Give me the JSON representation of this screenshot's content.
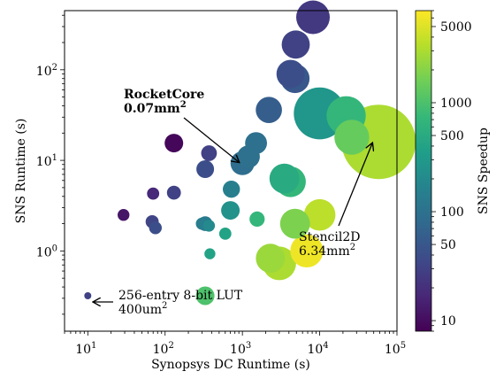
{
  "chart_data": {
    "type": "scatter",
    "title": "",
    "xlabel": "Synopsys DC Runtime (s)",
    "ylabel": "SNS Runtime (s)",
    "xscale": "log",
    "yscale": "log",
    "xlim": [
      5,
      100000
    ],
    "ylim": [
      0.13,
      450
    ],
    "x_tick_labels": [
      {
        "value": 10,
        "base": "10",
        "exp": "1"
      },
      {
        "value": 100,
        "base": "10",
        "exp": "2"
      },
      {
        "value": 1000,
        "base": "10",
        "exp": "3"
      },
      {
        "value": 10000,
        "base": "10",
        "exp": "4"
      },
      {
        "value": 100000,
        "base": "10",
        "exp": "5"
      }
    ],
    "y_tick_labels": [
      {
        "value": 1,
        "base": "10",
        "exp": "0"
      },
      {
        "value": 10,
        "base": "10",
        "exp": "1"
      },
      {
        "value": 100,
        "base": "10",
        "exp": "2"
      }
    ],
    "marker_size_encodes": "circuit area",
    "colorbar": {
      "label": "SNS Speedup",
      "scale": "log",
      "range": [
        8,
        7000
      ],
      "colormap": "viridis",
      "ticks": [
        10,
        50,
        100,
        500,
        1000,
        5000
      ],
      "tick_labels": [
        "10",
        "50",
        "100",
        "500",
        "1000",
        "5000"
      ]
    },
    "points": [
      {
        "x": 10,
        "y": 0.32,
        "speedup": 30,
        "area_mm2": 0.0004
      },
      {
        "x": 29,
        "y": 2.5,
        "speedup": 12,
        "area_mm2": 0.01
      },
      {
        "x": 70,
        "y": 4.3,
        "speedup": 17,
        "area_mm2": 0.011
      },
      {
        "x": 68,
        "y": 2.1,
        "speedup": 32,
        "area_mm2": 0.013
      },
      {
        "x": 75,
        "y": 1.8,
        "speedup": 40,
        "area_mm2": 0.012
      },
      {
        "x": 130,
        "y": 15.5,
        "speedup": 9,
        "area_mm2": 0.035
      },
      {
        "x": 130,
        "y": 4.4,
        "speedup": 30,
        "area_mm2": 0.016
      },
      {
        "x": 300,
        "y": 2.0,
        "speedup": 140,
        "area_mm2": 0.011
      },
      {
        "x": 330,
        "y": 2.0,
        "speedup": 130,
        "area_mm2": 0.018
      },
      {
        "x": 370,
        "y": 1.9,
        "speedup": 200,
        "area_mm2": 0.01
      },
      {
        "x": 370,
        "y": 12,
        "speedup": 30,
        "area_mm2": 0.022
      },
      {
        "x": 330,
        "y": 8,
        "speedup": 40,
        "area_mm2": 0.03
      },
      {
        "x": 380,
        "y": 0.93,
        "speedup": 400,
        "area_mm2": 0.008
      },
      {
        "x": 330,
        "y": 0.32,
        "speedup": 1000,
        "area_mm2": 0.035
      },
      {
        "x": 600,
        "y": 1.55,
        "speedup": 400,
        "area_mm2": 0.011
      },
      {
        "x": 720,
        "y": 4.8,
        "speedup": 150,
        "area_mm2": 0.028
      },
      {
        "x": 700,
        "y": 2.8,
        "speedup": 250,
        "area_mm2": 0.035
      },
      {
        "x": 1000,
        "y": 9.3,
        "speedup": 90,
        "area_mm2": 0.07
      },
      {
        "x": 1200,
        "y": 11,
        "speedup": 100,
        "area_mm2": 0.06
      },
      {
        "x": 1500,
        "y": 15.5,
        "speedup": 100,
        "area_mm2": 0.055
      },
      {
        "x": 1550,
        "y": 2.25,
        "speedup": 700,
        "area_mm2": 0.02
      },
      {
        "x": 2200,
        "y": 36,
        "speedup": 60,
        "area_mm2": 0.09
      },
      {
        "x": 2300,
        "y": 0.83,
        "speedup": 2500,
        "area_mm2": 0.12
      },
      {
        "x": 3000,
        "y": 0.73,
        "speedup": 3000,
        "area_mm2": 0.18
      },
      {
        "x": 3500,
        "y": 6.3,
        "speedup": 500,
        "area_mm2": 0.13
      },
      {
        "x": 4200,
        "y": 5.8,
        "speedup": 700,
        "area_mm2": 0.14
      },
      {
        "x": 4200,
        "y": 90,
        "speedup": 40,
        "area_mm2": 0.11
      },
      {
        "x": 4800,
        "y": 80,
        "speedup": 50,
        "area_mm2": 0.12
      },
      {
        "x": 4800,
        "y": 2.0,
        "speedup": 1800,
        "area_mm2": 0.13
      },
      {
        "x": 4900,
        "y": 190,
        "speedup": 30,
        "area_mm2": 0.11
      },
      {
        "x": 8200,
        "y": 380,
        "speedup": 25,
        "area_mm2": 0.18
      },
      {
        "x": 6800,
        "y": 1.0,
        "speedup": 6000,
        "area_mm2": 0.17
      },
      {
        "x": 10000,
        "y": 2.5,
        "speedup": 3500,
        "area_mm2": 0.15
      },
      {
        "x": 10000,
        "y": 33,
        "speedup": 280,
        "area_mm2": 0.6
      },
      {
        "x": 22000,
        "y": 31,
        "speedup": 700,
        "area_mm2": 0.28
      },
      {
        "x": 26000,
        "y": 18,
        "speedup": 1400,
        "area_mm2": 0.2
      },
      {
        "x": 58000,
        "y": 16,
        "speedup": 3000,
        "area_mm2": 6.34
      }
    ],
    "annotations": [
      {
        "lines": [
          "RocketCore",
          "0.07mm",
          "2"
        ],
        "bold": true,
        "text_x": 1,
        "text_y": 1,
        "target_x": 1000,
        "target_y": 9.3
      },
      {
        "lines": [
          "Stencil2D",
          "6.34mm",
          "2"
        ],
        "bold": false,
        "text_x": 1,
        "text_y": 1,
        "target_x": 58000,
        "target_y": 16
      },
      {
        "lines": [
          "256-entry 8-bit LUT",
          "400um",
          "2"
        ],
        "bold": false,
        "text_x": 1,
        "text_y": 1,
        "target_x": 10,
        "target_y": 0.32
      }
    ]
  }
}
